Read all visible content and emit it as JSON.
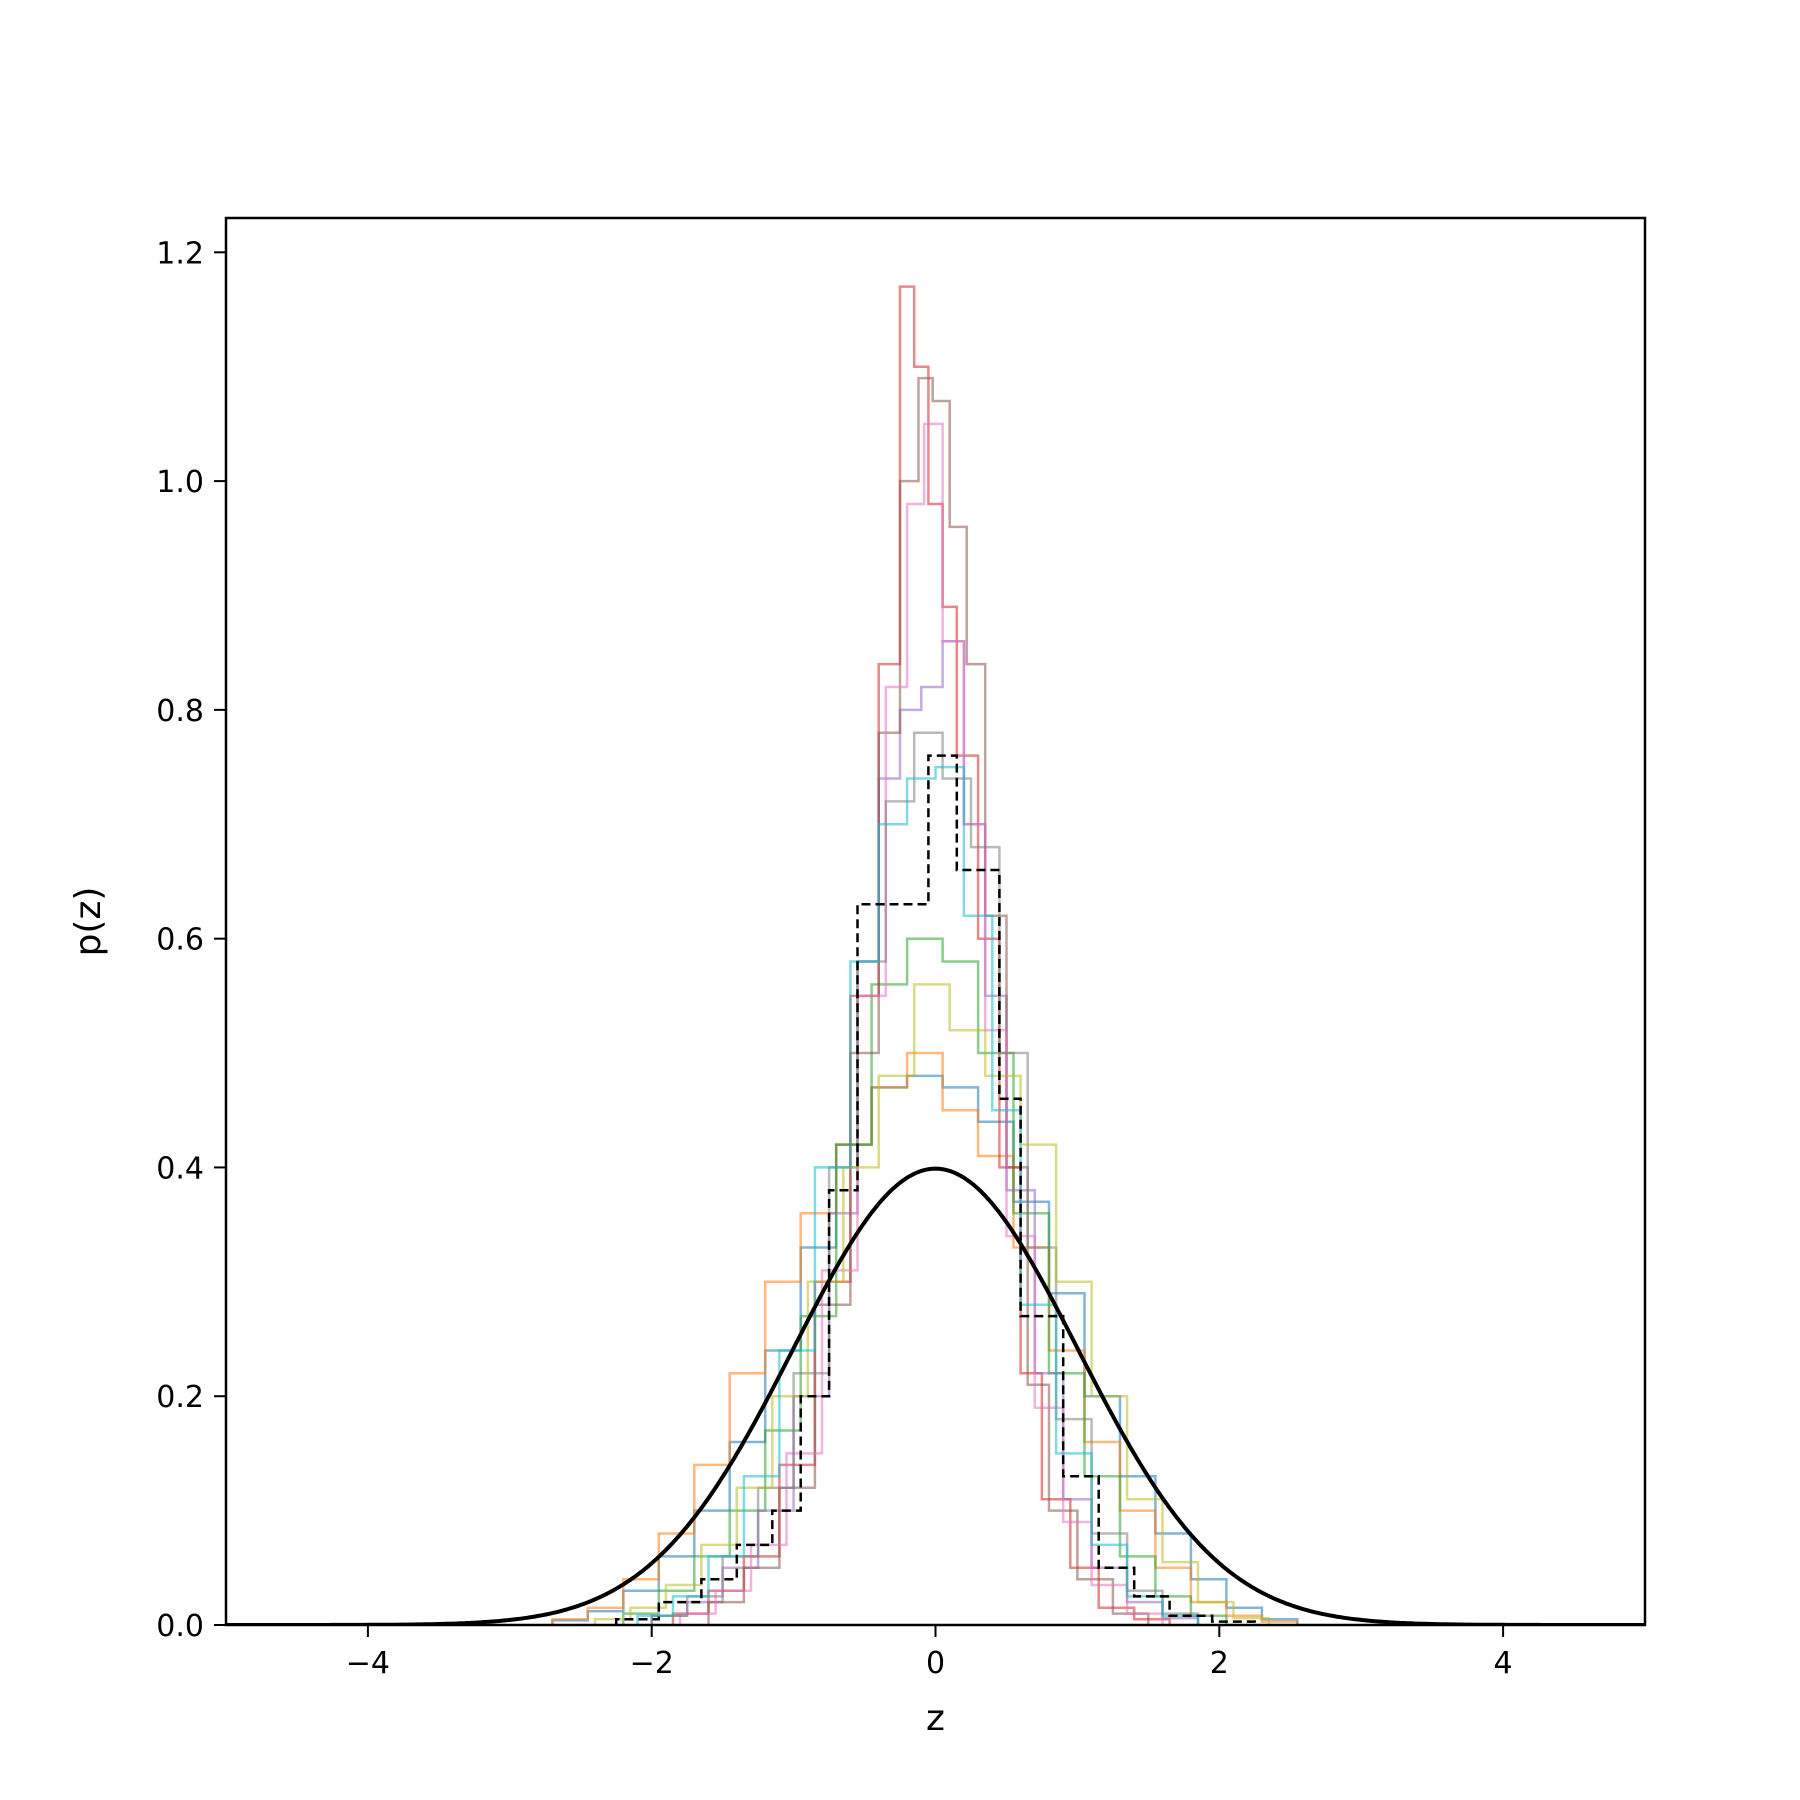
{
  "chart_data": {
    "type": "histogram",
    "xlabel": "z",
    "ylabel": "p(z)",
    "xlim": [
      -5,
      5
    ],
    "ylim": [
      0,
      1.23
    ],
    "xticks": [
      -4,
      -2,
      0,
      2,
      4
    ],
    "yticks": [
      0.0,
      0.2,
      0.4,
      0.6,
      0.8,
      1.0,
      1.2
    ],
    "xtick_labels": [
      "−4",
      "−2",
      "0",
      "2",
      "4"
    ],
    "ytick_labels": [
      "0.0",
      "0.2",
      "0.4",
      "0.6",
      "0.8",
      "1.0",
      "1.2"
    ],
    "grid": false,
    "legend": "none",
    "histogram_series": [
      {
        "color": "#1f77b4",
        "edges": [
          -2.7,
          -2.45,
          -2.2,
          -1.95,
          -1.7,
          -1.45,
          -1.2,
          -0.95,
          -0.7,
          -0.45,
          -0.2,
          0.05,
          0.3,
          0.55,
          0.8,
          1.05,
          1.3,
          1.55,
          1.8,
          2.05,
          2.3,
          2.55
        ],
        "heights": [
          0.004,
          0.012,
          0.03,
          0.06,
          0.1,
          0.16,
          0.24,
          0.33,
          0.42,
          0.47,
          0.48,
          0.47,
          0.44,
          0.37,
          0.29,
          0.2,
          0.13,
          0.08,
          0.04,
          0.015,
          0.005
        ]
      },
      {
        "color": "#ff7f0e",
        "edges": [
          -2.7,
          -2.45,
          -2.2,
          -1.95,
          -1.7,
          -1.45,
          -1.2,
          -0.95,
          -0.7,
          -0.45,
          -0.2,
          0.05,
          0.3,
          0.55,
          0.8,
          1.05,
          1.3,
          1.55,
          1.8,
          2.05,
          2.3,
          2.55
        ],
        "heights": [
          0.005,
          0.015,
          0.04,
          0.08,
          0.14,
          0.22,
          0.3,
          0.36,
          0.42,
          0.47,
          0.5,
          0.45,
          0.41,
          0.33,
          0.24,
          0.16,
          0.1,
          0.05,
          0.02,
          0.008,
          0.003
        ]
      },
      {
        "color": "#2ca02c",
        "edges": [
          -2.2,
          -1.95,
          -1.7,
          -1.45,
          -1.2,
          -0.95,
          -0.7,
          -0.45,
          -0.2,
          0.05,
          0.3,
          0.55,
          0.8,
          1.05,
          1.3,
          1.55,
          1.8,
          2.05
        ],
        "heights": [
          0.01,
          0.03,
          0.06,
          0.1,
          0.17,
          0.27,
          0.42,
          0.56,
          0.6,
          0.58,
          0.5,
          0.36,
          0.22,
          0.13,
          0.06,
          0.025,
          0.008
        ]
      },
      {
        "color": "#d62728",
        "edges": [
          -1.85,
          -1.6,
          -1.35,
          -1.1,
          -0.85,
          -0.6,
          -0.4,
          -0.25,
          -0.15,
          -0.05,
          0.05,
          0.15,
          0.3,
          0.45,
          0.6,
          0.75,
          0.95,
          1.15,
          1.4,
          1.65
        ],
        "heights": [
          0.01,
          0.03,
          0.06,
          0.14,
          0.3,
          0.55,
          0.84,
          1.17,
          1.1,
          0.98,
          0.89,
          0.76,
          0.6,
          0.4,
          0.22,
          0.11,
          0.05,
          0.015,
          0.005
        ]
      },
      {
        "color": "#9467bd",
        "edges": [
          -2.0,
          -1.75,
          -1.5,
          -1.25,
          -1.0,
          -0.75,
          -0.55,
          -0.4,
          -0.25,
          -0.1,
          0.05,
          0.2,
          0.35,
          0.5,
          0.7,
          0.9,
          1.1,
          1.35,
          1.6,
          1.85
        ],
        "heights": [
          0.008,
          0.02,
          0.05,
          0.1,
          0.2,
          0.36,
          0.58,
          0.74,
          0.8,
          0.82,
          0.86,
          0.7,
          0.55,
          0.38,
          0.22,
          0.11,
          0.05,
          0.02,
          0.006
        ]
      },
      {
        "color": "#8c564b",
        "edges": [
          -1.6,
          -1.35,
          -1.1,
          -0.85,
          -0.6,
          -0.4,
          -0.25,
          -0.12,
          -0.02,
          0.1,
          0.22,
          0.35,
          0.5,
          0.65,
          0.8,
          1.0,
          1.25,
          1.5
        ],
        "heights": [
          0.02,
          0.05,
          0.12,
          0.28,
          0.5,
          0.78,
          1.0,
          1.09,
          1.07,
          0.96,
          0.84,
          0.62,
          0.4,
          0.21,
          0.1,
          0.04,
          0.01
        ]
      },
      {
        "color": "#e377c2",
        "edges": [
          -1.8,
          -1.55,
          -1.3,
          -1.05,
          -0.8,
          -0.55,
          -0.35,
          -0.2,
          -0.08,
          0.05,
          0.2,
          0.35,
          0.5,
          0.7,
          0.9,
          1.1,
          1.35,
          1.6
        ],
        "heights": [
          0.01,
          0.03,
          0.07,
          0.15,
          0.31,
          0.55,
          0.82,
          0.98,
          1.05,
          0.86,
          0.7,
          0.52,
          0.34,
          0.19,
          0.09,
          0.035,
          0.01
        ]
      },
      {
        "color": "#7f7f7f",
        "edges": [
          -2.0,
          -1.75,
          -1.5,
          -1.25,
          -1.0,
          -0.75,
          -0.55,
          -0.35,
          -0.15,
          0.05,
          0.25,
          0.45,
          0.65,
          0.85,
          1.1,
          1.35,
          1.6,
          1.85
        ],
        "heights": [
          0.008,
          0.025,
          0.06,
          0.12,
          0.22,
          0.4,
          0.58,
          0.72,
          0.78,
          0.74,
          0.68,
          0.5,
          0.33,
          0.18,
          0.08,
          0.03,
          0.01
        ]
      },
      {
        "color": "#bcbd22",
        "edges": [
          -2.4,
          -2.15,
          -1.9,
          -1.65,
          -1.4,
          -1.15,
          -0.9,
          -0.65,
          -0.4,
          -0.15,
          0.1,
          0.35,
          0.6,
          0.85,
          1.1,
          1.35,
          1.6,
          1.85,
          2.1,
          2.35
        ],
        "heights": [
          0.005,
          0.015,
          0.035,
          0.07,
          0.12,
          0.2,
          0.3,
          0.4,
          0.48,
          0.56,
          0.52,
          0.48,
          0.42,
          0.3,
          0.2,
          0.11,
          0.055,
          0.02,
          0.006
        ]
      },
      {
        "color": "#17becf",
        "edges": [
          -2.1,
          -1.85,
          -1.6,
          -1.35,
          -1.1,
          -0.85,
          -0.6,
          -0.4,
          -0.2,
          0.0,
          0.2,
          0.4,
          0.6,
          0.85,
          1.1,
          1.35,
          1.6,
          1.85
        ],
        "heights": [
          0.008,
          0.025,
          0.06,
          0.13,
          0.24,
          0.4,
          0.58,
          0.7,
          0.74,
          0.75,
          0.62,
          0.45,
          0.28,
          0.15,
          0.07,
          0.025,
          0.008
        ]
      }
    ],
    "dashed_histogram": {
      "color": "#000000",
      "edges": [
        -2.25,
        -1.95,
        -1.65,
        -1.4,
        -1.15,
        -0.95,
        -0.75,
        -0.55,
        -0.45,
        -0.05,
        0.15,
        0.35,
        0.45,
        0.6,
        0.9,
        1.15,
        1.4,
        1.65,
        1.95,
        2.25
      ],
      "heights": [
        0.005,
        0.02,
        0.04,
        0.07,
        0.1,
        0.2,
        0.38,
        0.63,
        0.63,
        0.76,
        0.66,
        0.66,
        0.46,
        0.27,
        0.13,
        0.05,
        0.025,
        0.008,
        0.003
      ]
    },
    "normal_pdf": {
      "color": "#000000",
      "mean": 0,
      "std": 1
    }
  }
}
